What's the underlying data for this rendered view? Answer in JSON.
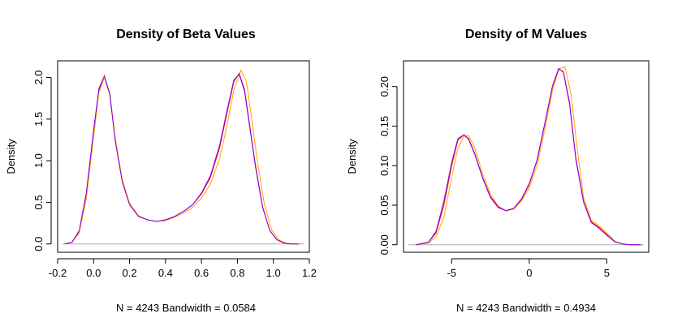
{
  "chart_data": [
    {
      "type": "line",
      "title": "Density of Beta Values",
      "xlabel": "N = 4243   Bandwidth = 0.0584",
      "ylabel": "Density",
      "xlim": [
        -0.2,
        1.2
      ],
      "ylim": [
        0,
        2.1
      ],
      "x_ticks": [
        "-0.2",
        "0.0",
        "0.2",
        "0.4",
        "0.6",
        "0.8",
        "1.0",
        "1.2"
      ],
      "y_ticks": [
        "0.0",
        "0.5",
        "1.0",
        "1.5",
        "2.0"
      ],
      "grid": false,
      "zero_line_color": "#b0b0b0",
      "series": [
        {
          "color": "#ff0000",
          "x": [
            -0.16,
            -0.12,
            -0.08,
            -0.04,
            0.0,
            0.03,
            0.06,
            0.09,
            0.12,
            0.16,
            0.2,
            0.25,
            0.3,
            0.35,
            0.4,
            0.45,
            0.5,
            0.55,
            0.6,
            0.65,
            0.7,
            0.74,
            0.78,
            0.81,
            0.84,
            0.87,
            0.9,
            0.94,
            0.98,
            1.02,
            1.06,
            1.1,
            1.14
          ],
          "y": [
            0.0,
            0.02,
            0.15,
            0.6,
            1.35,
            1.85,
            2.0,
            1.8,
            1.25,
            0.75,
            0.48,
            0.34,
            0.29,
            0.27,
            0.29,
            0.33,
            0.39,
            0.47,
            0.6,
            0.8,
            1.15,
            1.55,
            1.95,
            2.05,
            1.85,
            1.4,
            0.95,
            0.45,
            0.16,
            0.05,
            0.01,
            0.0,
            0.0
          ]
        },
        {
          "color": "#ffa500",
          "x": [
            -0.16,
            -0.12,
            -0.08,
            -0.04,
            0.0,
            0.03,
            0.06,
            0.09,
            0.12,
            0.16,
            0.2,
            0.25,
            0.3,
            0.35,
            0.4,
            0.45,
            0.5,
            0.55,
            0.6,
            0.65,
            0.7,
            0.74,
            0.78,
            0.82,
            0.85,
            0.88,
            0.91,
            0.95,
            0.99,
            1.03,
            1.07,
            1.11,
            1.15
          ],
          "y": [
            0.0,
            0.02,
            0.13,
            0.55,
            1.28,
            1.82,
            2.0,
            1.82,
            1.28,
            0.77,
            0.49,
            0.34,
            0.29,
            0.27,
            0.28,
            0.32,
            0.37,
            0.44,
            0.55,
            0.72,
            1.02,
            1.4,
            1.85,
            2.09,
            1.95,
            1.5,
            1.0,
            0.48,
            0.17,
            0.05,
            0.01,
            0.0,
            0.0
          ]
        },
        {
          "color": "#8000ff",
          "x": [
            -0.16,
            -0.12,
            -0.08,
            -0.04,
            0.0,
            0.03,
            0.06,
            0.09,
            0.12,
            0.16,
            0.2,
            0.25,
            0.3,
            0.35,
            0.4,
            0.45,
            0.5,
            0.55,
            0.6,
            0.65,
            0.7,
            0.74,
            0.78,
            0.81,
            0.84,
            0.87,
            0.9,
            0.94,
            0.98,
            1.02,
            1.06,
            1.1,
            1.14
          ],
          "y": [
            0.0,
            0.02,
            0.16,
            0.62,
            1.37,
            1.87,
            2.02,
            1.8,
            1.24,
            0.74,
            0.47,
            0.33,
            0.29,
            0.27,
            0.29,
            0.33,
            0.39,
            0.47,
            0.61,
            0.82,
            1.18,
            1.58,
            1.97,
            2.04,
            1.83,
            1.38,
            0.93,
            0.44,
            0.16,
            0.05,
            0.01,
            0.0,
            0.0
          ]
        }
      ]
    },
    {
      "type": "line",
      "title": "Density of M Values",
      "xlabel": "N = 4243   Bandwidth = 0.4934",
      "ylabel": "Density",
      "xlim": [
        -7.5,
        7.5
      ],
      "ylim": [
        0,
        0.23
      ],
      "x_ticks": [
        "-5",
        "0",
        "5"
      ],
      "y_ticks": [
        "0.00",
        "0.05",
        "0.10",
        "0.15",
        "0.20"
      ],
      "grid": false,
      "zero_line_color": "#b0b0b0",
      "series": [
        {
          "color": "#ffa500",
          "x": [
            -7.3,
            -6.5,
            -6.0,
            -5.5,
            -5.0,
            -4.6,
            -4.2,
            -3.9,
            -3.5,
            -3.0,
            -2.5,
            -2.0,
            -1.5,
            -1.0,
            -0.5,
            0.0,
            0.5,
            1.0,
            1.5,
            1.9,
            2.3,
            2.7,
            3.1,
            3.5,
            4.0,
            4.5,
            5.0,
            5.5,
            6.0,
            6.5,
            7.2
          ],
          "y": [
            0.0,
            0.002,
            0.01,
            0.035,
            0.085,
            0.122,
            0.137,
            0.138,
            0.122,
            0.09,
            0.064,
            0.049,
            0.043,
            0.045,
            0.055,
            0.072,
            0.1,
            0.145,
            0.195,
            0.222,
            0.225,
            0.19,
            0.12,
            0.06,
            0.031,
            0.024,
            0.015,
            0.005,
            0.001,
            0.0,
            0.0
          ]
        },
        {
          "color": "#ff0000",
          "x": [
            -7.3,
            -6.5,
            -6.0,
            -5.5,
            -5.0,
            -4.6,
            -4.2,
            -3.9,
            -3.5,
            -3.0,
            -2.5,
            -2.0,
            -1.5,
            -1.0,
            -0.5,
            0.0,
            0.5,
            1.0,
            1.5,
            1.9,
            2.2,
            2.6,
            3.0,
            3.5,
            4.0,
            4.5,
            5.0,
            5.5,
            6.0,
            6.5,
            7.2
          ],
          "y": [
            0.0,
            0.003,
            0.015,
            0.05,
            0.1,
            0.132,
            0.139,
            0.134,
            0.115,
            0.085,
            0.061,
            0.048,
            0.043,
            0.046,
            0.057,
            0.076,
            0.106,
            0.152,
            0.2,
            0.222,
            0.219,
            0.18,
            0.11,
            0.055,
            0.029,
            0.022,
            0.013,
            0.004,
            0.001,
            0.0,
            0.0
          ]
        },
        {
          "color": "#8000ff",
          "x": [
            -7.3,
            -6.5,
            -6.0,
            -5.5,
            -5.0,
            -4.6,
            -4.2,
            -3.9,
            -3.5,
            -3.0,
            -2.5,
            -2.0,
            -1.5,
            -1.0,
            -0.5,
            0.0,
            0.5,
            1.0,
            1.5,
            1.9,
            2.2,
            2.6,
            3.0,
            3.5,
            4.0,
            4.5,
            5.0,
            5.5,
            6.0,
            6.5,
            7.2
          ],
          "y": [
            0.0,
            0.003,
            0.017,
            0.055,
            0.104,
            0.134,
            0.139,
            0.133,
            0.114,
            0.084,
            0.06,
            0.047,
            0.043,
            0.046,
            0.058,
            0.077,
            0.107,
            0.153,
            0.201,
            0.223,
            0.218,
            0.178,
            0.108,
            0.054,
            0.028,
            0.021,
            0.012,
            0.004,
            0.001,
            0.0,
            0.0
          ]
        }
      ]
    }
  ]
}
